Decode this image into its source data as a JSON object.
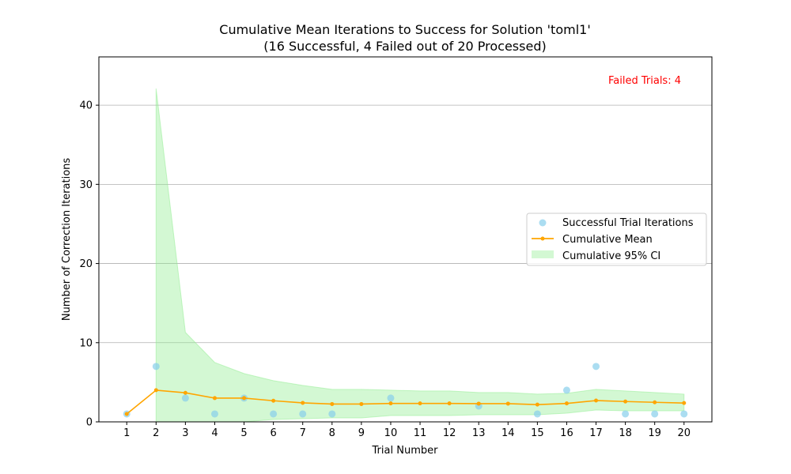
{
  "chart_data": {
    "type": "line",
    "title": "Cumulative Mean Iterations to Success for Solution 'toml1'",
    "subtitle": "(16 Successful, 4 Failed out of 20 Processed)",
    "xlabel": "Trial Number",
    "ylabel": "Number of Correction Iterations",
    "xlim": [
      0.05,
      20.95
    ],
    "ylim": [
      0,
      46.1
    ],
    "x_ticks": [
      1,
      2,
      3,
      4,
      5,
      6,
      7,
      8,
      9,
      10,
      11,
      12,
      13,
      14,
      15,
      16,
      17,
      18,
      19,
      20
    ],
    "y_ticks": [
      0,
      10,
      20,
      30,
      40
    ],
    "grid": "horizontal",
    "legend_position": "center-right",
    "annotation": {
      "text": "Failed Trials: 4",
      "color": "#ff0000",
      "position": "top-right"
    },
    "series": [
      {
        "name": "Successful Trial Iterations",
        "kind": "scatter",
        "color": "#87ceeb",
        "x": [
          1,
          2,
          3,
          4,
          5,
          6,
          7,
          8,
          10,
          13,
          15,
          16,
          17,
          18,
          19,
          20
        ],
        "y": [
          1,
          7,
          3,
          1,
          3,
          1,
          1,
          1,
          3,
          2,
          1,
          4,
          7,
          1,
          1,
          1
        ]
      },
      {
        "name": "Cumulative Mean",
        "kind": "line",
        "color": "#ffa500",
        "x": [
          1,
          2,
          3,
          4,
          5,
          6,
          7,
          8,
          9,
          10,
          11,
          12,
          13,
          14,
          15,
          16,
          17,
          18,
          19,
          20
        ],
        "y": [
          1,
          4,
          3.67,
          3,
          3,
          2.67,
          2.4,
          2.25,
          2.25,
          2.33,
          2.33,
          2.33,
          2.3,
          2.3,
          2.18,
          2.33,
          2.69,
          2.57,
          2.47,
          2.38
        ]
      },
      {
        "name": "Cumulative 95% CI",
        "kind": "band",
        "color": "#90ee90",
        "x": [
          2,
          3,
          4,
          5,
          6,
          7,
          8,
          9,
          10,
          11,
          12,
          13,
          14,
          15,
          16,
          17,
          18,
          19,
          20
        ],
        "lower": [
          0,
          0,
          0,
          0,
          0.3,
          0.4,
          0.5,
          0.5,
          0.8,
          0.8,
          0.8,
          0.9,
          0.9,
          0.9,
          1.1,
          1.5,
          1.4,
          1.4,
          1.4
        ],
        "upper": [
          42.1,
          11.3,
          7.5,
          6.1,
          5.2,
          4.6,
          4.1,
          4.1,
          4.0,
          3.9,
          3.9,
          3.7,
          3.7,
          3.5,
          3.6,
          4.1,
          3.9,
          3.7,
          3.5
        ]
      }
    ]
  }
}
